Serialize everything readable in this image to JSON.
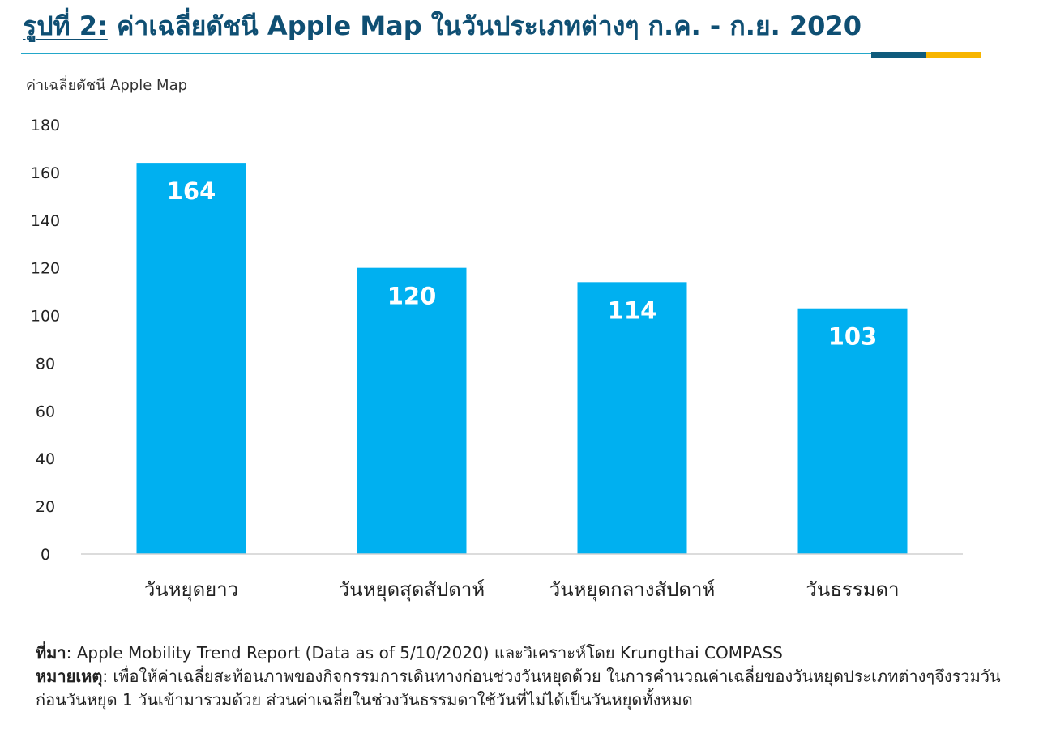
{
  "header": {
    "title_prefix": "รูปที่ 2:",
    "title_text": " ค่าเฉลี่ยดัชนี Apple Map ในวันประเภทต่างๆ ก.ค. - ก.ย. 2020"
  },
  "colors": {
    "title": "#0f4f73",
    "bar": "#00b0f0",
    "rule_thin": "#23a7c9",
    "rule_blue": "#0f5b7c",
    "rule_gold": "#f7b500"
  },
  "chart_data": {
    "type": "bar",
    "title": "ค่าเฉลี่ยดัชนี Apple Map ในวันประเภทต่างๆ ก.ค. - ก.ย. 2020",
    "ylabel": "ค่าเฉลี่ยดัชนี Apple Map",
    "xlabel": "",
    "categories": [
      "วันหยุดยาว",
      "วันหยุดสุดสัปดาห์",
      "วันหยุดกลางสัปดาห์",
      "วันธรรมดา"
    ],
    "values": [
      164,
      120,
      114,
      103
    ],
    "data_labels": [
      "164",
      "120",
      "114",
      "103"
    ],
    "ylim": [
      0,
      180
    ],
    "yticks": [
      0,
      20,
      40,
      60,
      80,
      100,
      120,
      140,
      160,
      180
    ],
    "grid": false,
    "legend": "none"
  },
  "footnote": {
    "source_key": "ที่มา",
    "source_text": ": Apple Mobility Trend Report (Data as of 5/10/2020) และวิเคราะห์โดย Krungthai COMPASS",
    "note_key": "หมายเหตุ",
    "note_text": ": เพื่อให้ค่าเฉลี่ยสะท้อนภาพของกิจกรรมการเดินทางก่อนช่วงวันหยุดด้วย ในการคำนวณค่าเฉลี่ยของวันหยุดประเภทต่างๆจึงรวมวันก่อนวันหยุด 1 วันเข้ามารวมด้วย ส่วนค่าเฉลี่ยในช่วงวันธรรมดาใช้วันที่ไม่ได้เป็นวันหยุดทั้งหมด"
  }
}
